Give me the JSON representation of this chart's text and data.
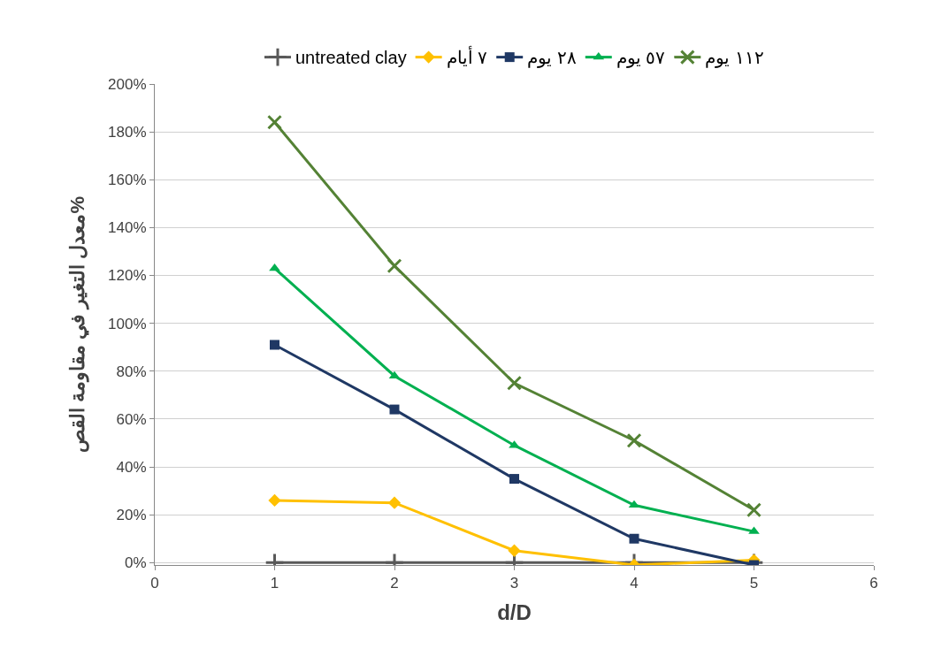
{
  "chart_data": {
    "type": "line",
    "x": [
      1,
      2,
      3,
      4,
      5
    ],
    "xlabel": "d/D",
    "ylabel": "معدل التغير في مقاومة القص%",
    "xlim": [
      0,
      6
    ],
    "xticks": [
      0,
      1,
      2,
      3,
      4,
      5,
      6
    ],
    "ylim": [
      -1,
      200
    ],
    "yticks": [
      {
        "value": 0,
        "label": "0%"
      },
      {
        "value": 20,
        "label": "20%"
      },
      {
        "value": 40,
        "label": "40%"
      },
      {
        "value": 60,
        "label": "60%"
      },
      {
        "value": 80,
        "label": "80%"
      },
      {
        "value": 100,
        "label": "100%"
      },
      {
        "value": 120,
        "label": "120%"
      },
      {
        "value": 140,
        "label": "140%"
      },
      {
        "value": 160,
        "label": "160%"
      },
      {
        "value": 180,
        "label": "180%"
      },
      {
        "value": 200,
        "label": "200%"
      }
    ],
    "grid": "y",
    "legend": "top",
    "series": [
      {
        "name": "untreated clay",
        "color": "#595959",
        "marker": "cross",
        "values": [
          0,
          0,
          0,
          0,
          0
        ]
      },
      {
        "name": "٧ أيام",
        "color": "#ffc000",
        "marker": "diamond",
        "values": [
          26,
          25,
          5,
          -1,
          1
        ]
      },
      {
        "name": "٢٨ يوم",
        "color": "#1f3864",
        "marker": "square",
        "values": [
          91,
          64,
          35,
          10,
          -1
        ]
      },
      {
        "name": "٥٧ يوم",
        "color": "#00b050",
        "marker": "triangle",
        "values": [
          123,
          78,
          49,
          24,
          13
        ]
      },
      {
        "name": "١١٢ يوم",
        "color": "#548235",
        "marker": "x",
        "values": [
          184,
          124,
          75,
          51,
          22
        ]
      }
    ]
  }
}
